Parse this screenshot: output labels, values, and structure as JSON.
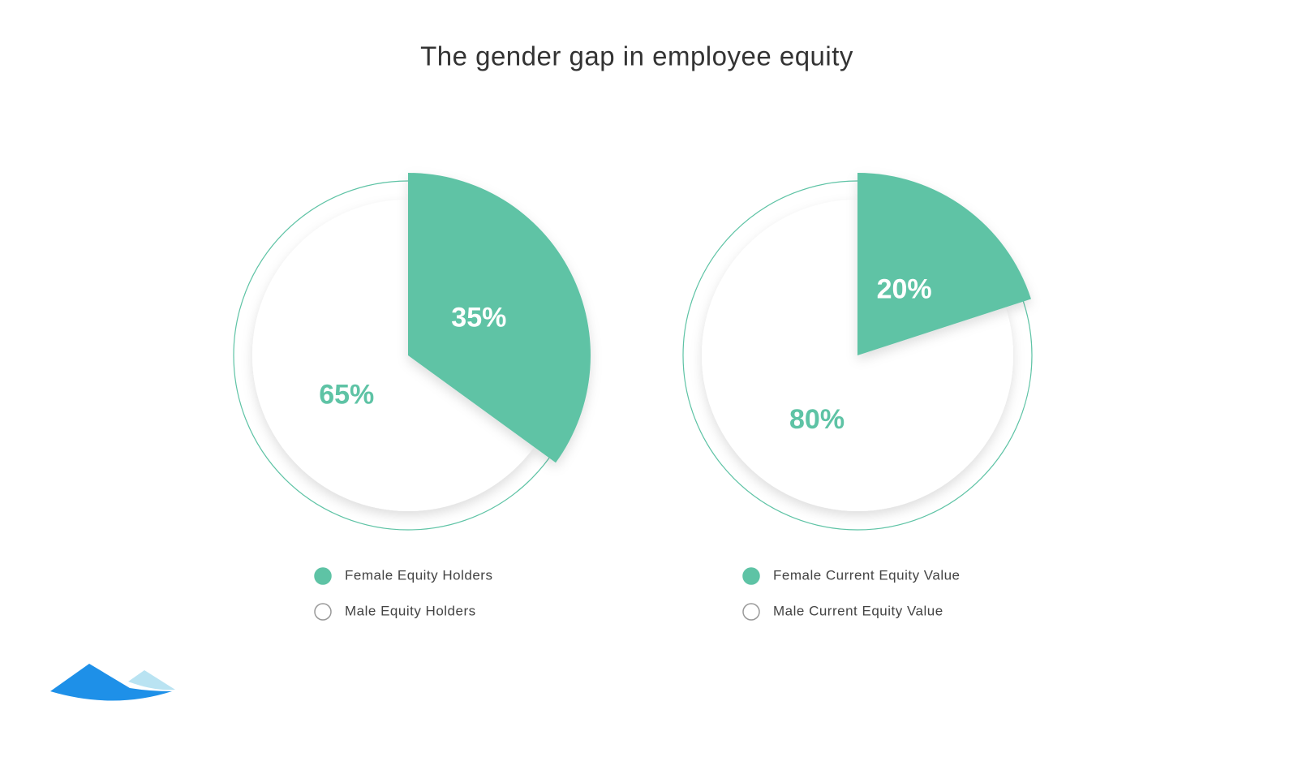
{
  "title": "The gender gap in employee equity",
  "chart_data": [
    {
      "type": "pie",
      "categories": [
        "Female Equity Holders",
        "Male Equity Holders"
      ],
      "values": [
        35,
        65
      ],
      "value_labels": [
        "35%",
        "65%"
      ],
      "colors": [
        "#5ec3a5",
        "#ffffff"
      ]
    },
    {
      "type": "pie",
      "categories": [
        "Female Current Equity Value",
        "Male Current Equity Value"
      ],
      "values": [
        20,
        80
      ],
      "value_labels": [
        "20%",
        "80%"
      ],
      "colors": [
        "#5ec3a5",
        "#ffffff"
      ]
    }
  ]
}
